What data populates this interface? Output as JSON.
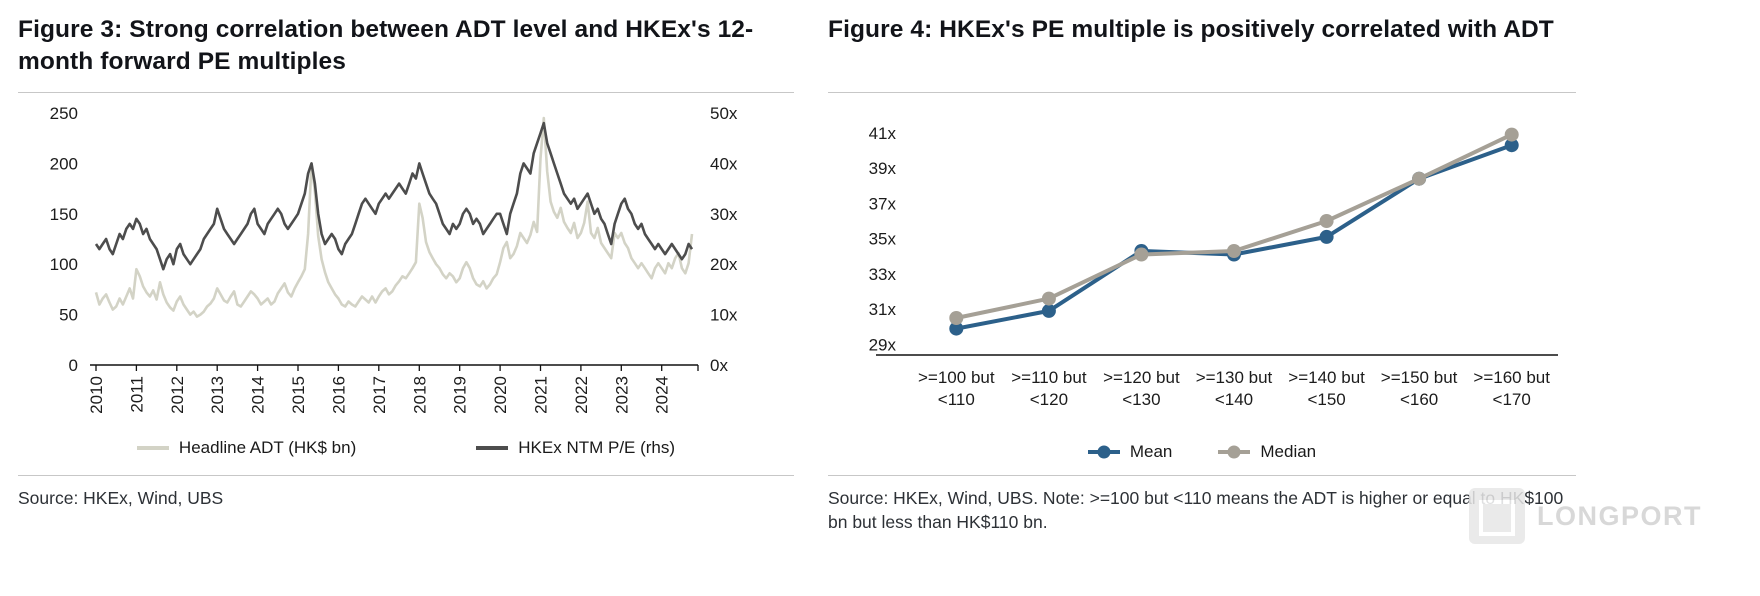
{
  "sources": {
    "fig3": "Source: HKEx, Wind, UBS",
    "fig4": "Source: HKEx, Wind, UBS. Note: >=100 but <110 means the ADT is higher or equal to HK$100 bn but less than HK$110 bn."
  },
  "watermark": {
    "text": "LONGPORT"
  },
  "chart_data": [
    {
      "type": "line",
      "title": "Figure 3: Strong correlation between ADT level and HKEx's 12-month forward PE multiples",
      "x_unit": "month",
      "x_start": "2010-01",
      "x_end": "2024-10",
      "x_tick_labels": [
        "2010",
        "2011",
        "2012",
        "2013",
        "2014",
        "2015",
        "2016",
        "2017",
        "2018",
        "2019",
        "2020",
        "2021",
        "2022",
        "2023",
        "2024"
      ],
      "left_axis": {
        "ticks": [
          0,
          50,
          100,
          150,
          200,
          250
        ],
        "lim": [
          0,
          250
        ]
      },
      "right_axis": {
        "ticks": [
          "0x",
          "10x",
          "20x",
          "30x",
          "40x",
          "50x"
        ],
        "lim": [
          0,
          50
        ]
      },
      "grid": false,
      "legend_position": "bottom",
      "series": [
        {
          "name": "Headline ADT (HK$ bn)",
          "axis": "left",
          "color": "#d3d3c6",
          "values": [
            72,
            60,
            66,
            70,
            62,
            55,
            58,
            66,
            60,
            68,
            76,
            66,
            95,
            88,
            78,
            72,
            68,
            74,
            65,
            82,
            70,
            62,
            57,
            54,
            63,
            68,
            60,
            55,
            50,
            53,
            48,
            50,
            53,
            58,
            61,
            66,
            76,
            70,
            64,
            62,
            68,
            73,
            60,
            58,
            63,
            68,
            73,
            70,
            66,
            60,
            63,
            66,
            60,
            63,
            71,
            76,
            81,
            72,
            68,
            76,
            82,
            88,
            95,
            130,
            200,
            172,
            128,
            105,
            92,
            82,
            76,
            70,
            66,
            60,
            58,
            63,
            60,
            58,
            63,
            68,
            65,
            62,
            68,
            62,
            68,
            73,
            76,
            70,
            73,
            79,
            83,
            88,
            86,
            91,
            96,
            102,
            160,
            146,
            122,
            112,
            106,
            100,
            96,
            90,
            86,
            91,
            88,
            82,
            86,
            96,
            102,
            96,
            86,
            80,
            78,
            83,
            76,
            80,
            86,
            90,
            102,
            116,
            122,
            106,
            110,
            118,
            131,
            126,
            121,
            129,
            142,
            132,
            205,
            245,
            192,
            162,
            152,
            146,
            156,
            142,
            136,
            131,
            141,
            126,
            131,
            141,
            162,
            131,
            126,
            136,
            121,
            116,
            111,
            106,
            131,
            126,
            131,
            121,
            116,
            106,
            101,
            96,
            101,
            96,
            91,
            86,
            96,
            101,
            96,
            91,
            101,
            96,
            106,
            111,
            96,
            91,
            101,
            130
          ]
        },
        {
          "name": "HKEx NTM P/E (rhs)",
          "axis": "right",
          "color": "#4d4d4d",
          "values": [
            24,
            23,
            24,
            25,
            23,
            22,
            24,
            26,
            25,
            27,
            28,
            27,
            29,
            28,
            26,
            27,
            25,
            24,
            23,
            21,
            19,
            21,
            22,
            20,
            23,
            24,
            22,
            21,
            20,
            21,
            22,
            23,
            25,
            26,
            27,
            28,
            31,
            29,
            27,
            26,
            25,
            24,
            25,
            26,
            27,
            28,
            30,
            31,
            28,
            27,
            26,
            28,
            29,
            30,
            31,
            30,
            28,
            27,
            28,
            29,
            30,
            32,
            34,
            38,
            40,
            36,
            30,
            26,
            24,
            25,
            26,
            25,
            23,
            22,
            24,
            25,
            26,
            28,
            30,
            32,
            33,
            32,
            31,
            30,
            32,
            33,
            34,
            33,
            34,
            35,
            36,
            35,
            34,
            36,
            38,
            37,
            40,
            38,
            36,
            34,
            33,
            32,
            30,
            28,
            27,
            26,
            28,
            27,
            28,
            30,
            31,
            30,
            28,
            29,
            28,
            26,
            27,
            28,
            29,
            30,
            30,
            28,
            26,
            30,
            32,
            34,
            38,
            40,
            39,
            38,
            42,
            44,
            46,
            48,
            44,
            42,
            40,
            38,
            36,
            34,
            33,
            32,
            33,
            31,
            32,
            33,
            34,
            32,
            30,
            31,
            29,
            28,
            26,
            24,
            28,
            30,
            32,
            33,
            31,
            30,
            28,
            27,
            28,
            26,
            25,
            24,
            23,
            24,
            23,
            22,
            23,
            24,
            23,
            22,
            21,
            22,
            24,
            23
          ]
        }
      ]
    },
    {
      "type": "line",
      "title": "Figure 4: HKEx's PE multiple is positively correlated with ADT",
      "categories": [
        ">=100 but <110",
        ">=110 but <120",
        ">=120 but <130",
        ">=130 but <140",
        ">=140 but <150",
        ">=150 but <160",
        ">=160 but <170"
      ],
      "y_tick_labels": [
        "29x",
        "31x",
        "33x",
        "35x",
        "37x",
        "39x",
        "41x"
      ],
      "ylim": [
        29,
        41
      ],
      "grid": false,
      "legend_position": "bottom",
      "series": [
        {
          "name": "Mean",
          "color": "#2c608a",
          "marker": "circle",
          "values": [
            29.9,
            30.9,
            34.3,
            34.1,
            35.1,
            38.4,
            40.3
          ]
        },
        {
          "name": "Median",
          "color": "#a5a096",
          "marker": "circle",
          "values": [
            30.5,
            31.6,
            34.1,
            34.3,
            36.0,
            38.4,
            40.9
          ]
        }
      ]
    }
  ]
}
